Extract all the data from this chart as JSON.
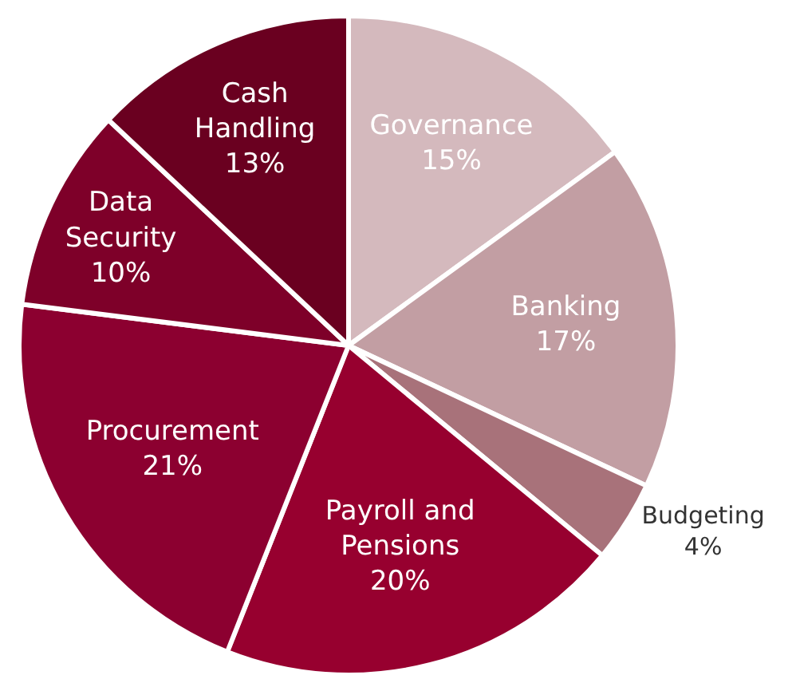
{
  "chart_data": {
    "type": "pie",
    "categories": [
      "Governance",
      "Banking",
      "Budgeting",
      "Payroll and Pensions",
      "Procurement",
      "Data Security",
      "Cash Handling"
    ],
    "values": [
      15,
      17,
      4,
      20,
      21,
      10,
      13
    ],
    "value_labels": [
      "15%",
      "17%",
      "4%",
      "20%",
      "21%",
      "10%",
      "13%"
    ],
    "colors": [
      "#d4b9bd",
      "#c29ea3",
      "#a8727a",
      "#97002f",
      "#8c0030",
      "#7e0029",
      "#6a0020"
    ],
    "legend": false
  }
}
